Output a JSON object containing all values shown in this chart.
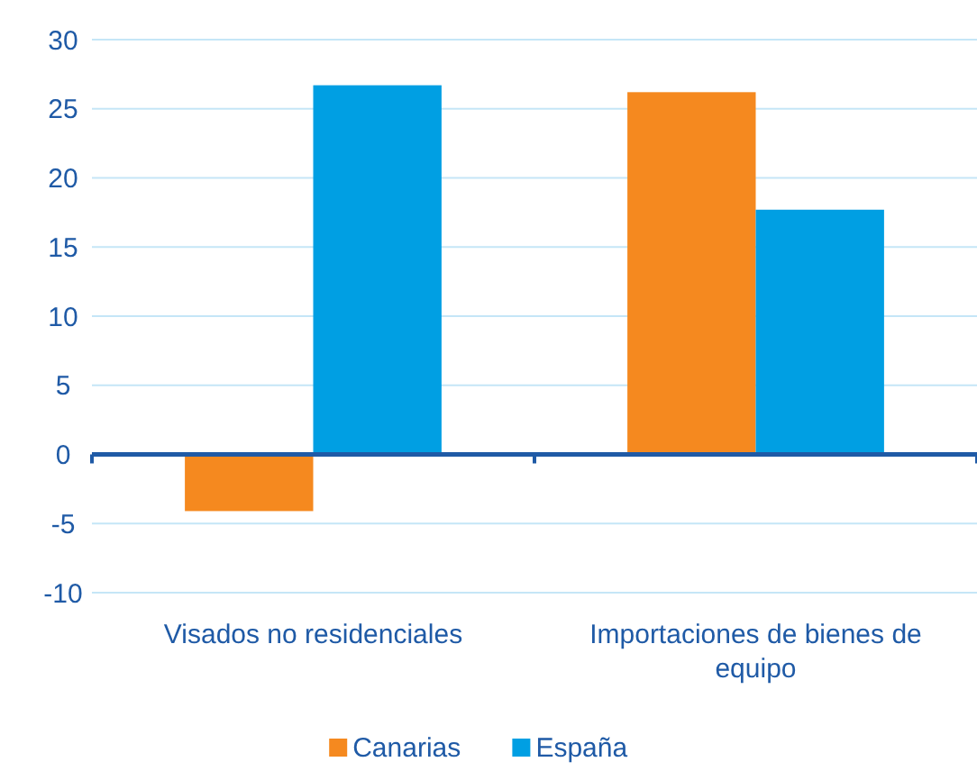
{
  "chart_data": {
    "type": "bar",
    "categories": [
      "Visados no residenciales",
      "Importaciones de bienes de equipo"
    ],
    "series": [
      {
        "name": "Canarias",
        "color": "#f5891f",
        "values": [
          -4.1,
          26.2
        ]
      },
      {
        "name": "España",
        "color": "#009fe3",
        "values": [
          26.7,
          17.7
        ]
      }
    ],
    "ylim": [
      -10,
      30
    ],
    "yticks": [
      -10,
      -5,
      0,
      5,
      10,
      15,
      20,
      25,
      30
    ],
    "ref_lines": [
      {
        "axis": "y",
        "value": 0,
        "color": "#1f5aa6"
      }
    ],
    "grid": "y",
    "legend": "bottom"
  }
}
